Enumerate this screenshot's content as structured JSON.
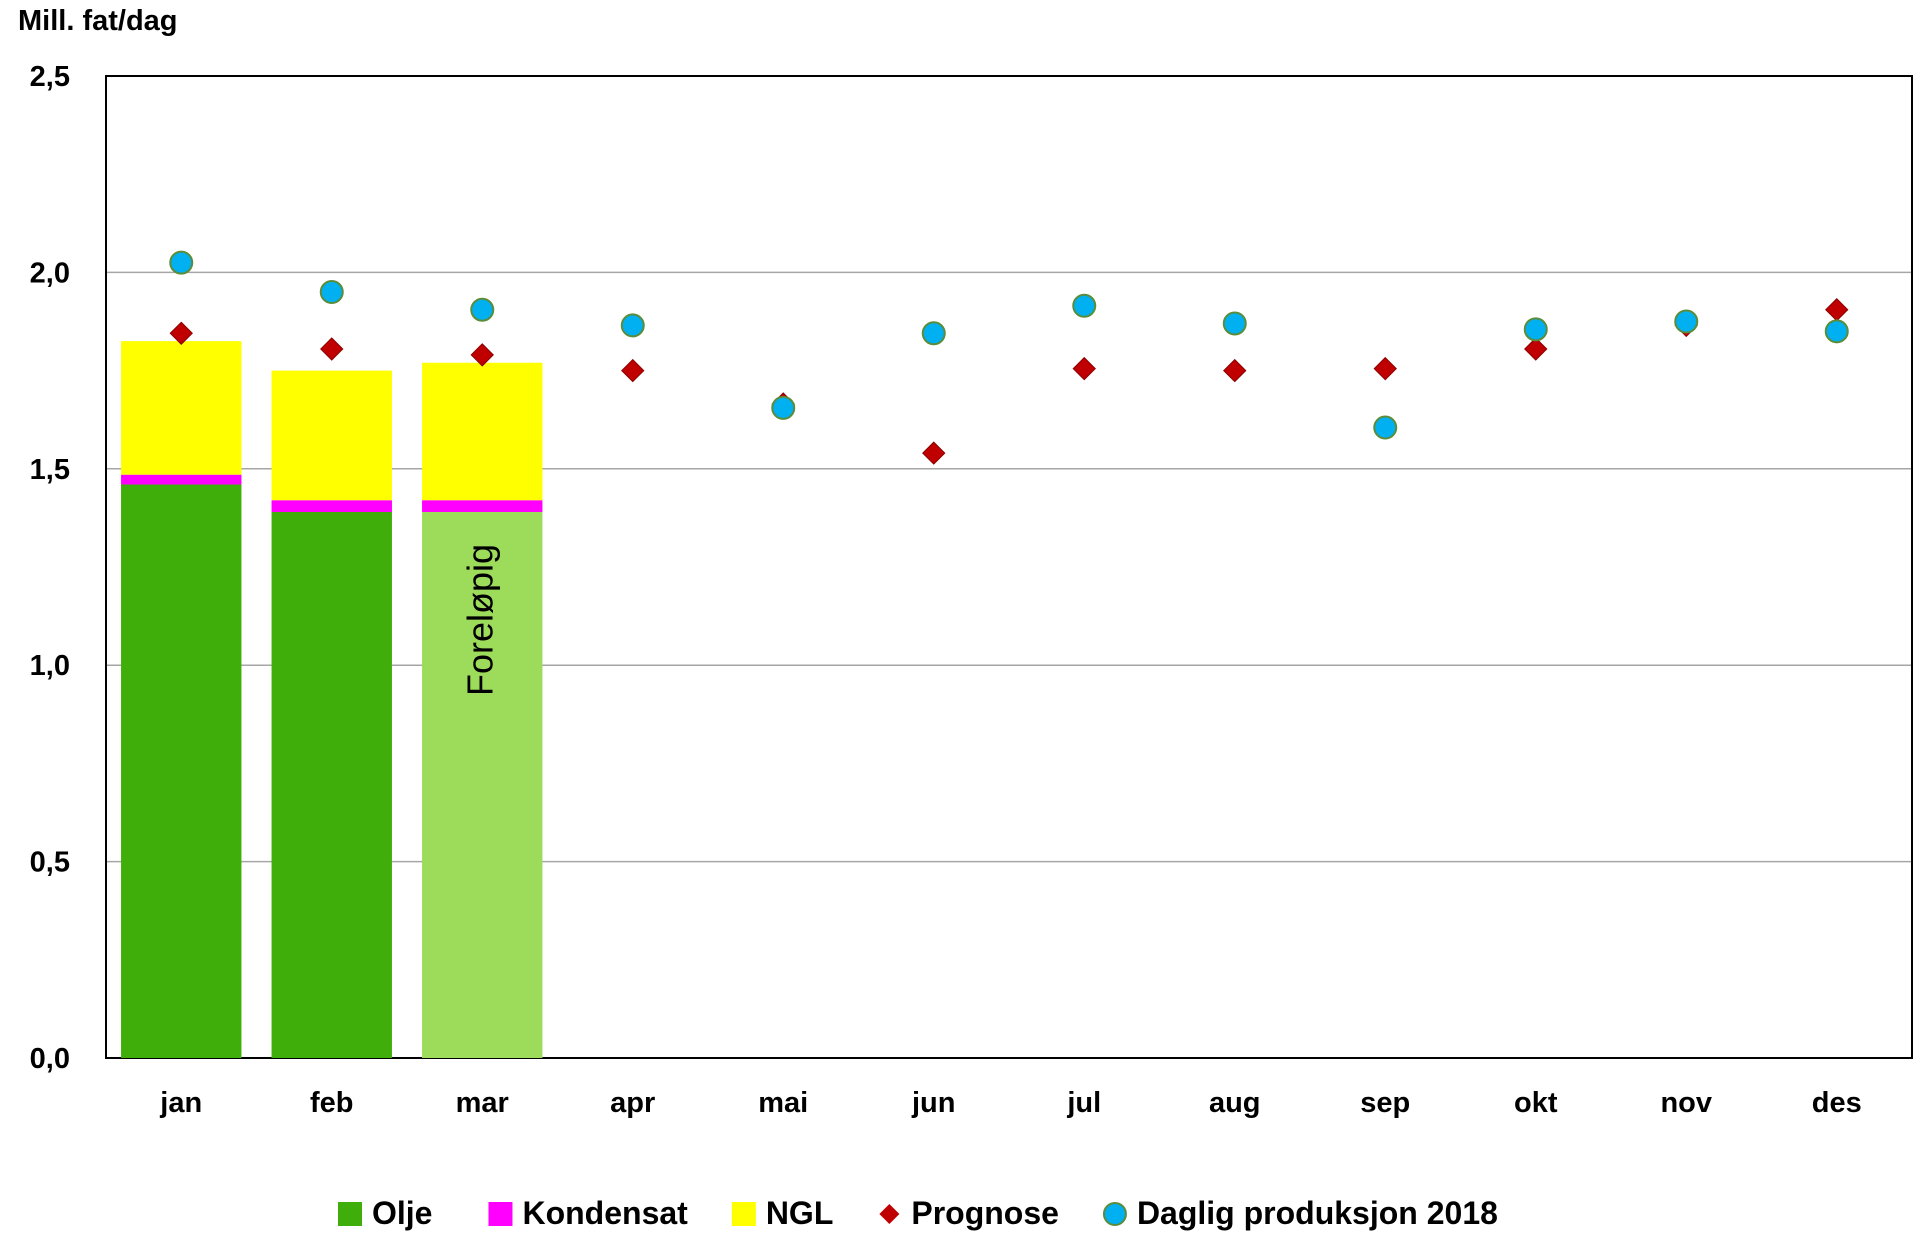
{
  "chart_data": {
    "type": "bar",
    "ylabel": "Mill. fat/dag",
    "ylim": [
      0,
      2.5
    ],
    "yticks": [
      "0,0",
      "0,5",
      "1,0",
      "1,5",
      "2,0",
      "2,5"
    ],
    "ytick_values": [
      0,
      0.5,
      1.0,
      1.5,
      2.0,
      2.5
    ],
    "grid": true,
    "legend_position": "bottom",
    "categories": [
      "jan",
      "feb",
      "mar",
      "apr",
      "mai",
      "jun",
      "jul",
      "aug",
      "sep",
      "okt",
      "nov",
      "des"
    ],
    "bar_series": [
      {
        "name": "Olje",
        "color": "#3fae0a",
        "values": [
          1.46,
          1.39,
          1.39,
          null,
          null,
          null,
          null,
          null,
          null,
          null,
          null,
          null
        ]
      },
      {
        "name": "Kondensat",
        "color": "#ff00ff",
        "values": [
          0.025,
          0.03,
          0.03,
          null,
          null,
          null,
          null,
          null,
          null,
          null,
          null,
          null
        ]
      },
      {
        "name": "NGL",
        "color": "#ffff00",
        "values": [
          0.34,
          0.33,
          0.35,
          null,
          null,
          null,
          null,
          null,
          null,
          null,
          null,
          null
        ]
      }
    ],
    "preliminary": {
      "category": "mar",
      "label": "Foreløpig",
      "oil_color": "#9ddc5a"
    },
    "point_series": [
      {
        "name": "Prognose",
        "marker": "diamond",
        "color": "#c00000",
        "values": [
          1.845,
          1.805,
          1.79,
          1.75,
          1.665,
          1.54,
          1.755,
          1.75,
          1.755,
          1.805,
          1.865,
          1.905
        ]
      },
      {
        "name": "Daglig produksjon 2018",
        "marker": "circle",
        "color": "#00b0f0",
        "values": [
          2.025,
          1.95,
          1.905,
          1.865,
          1.655,
          1.845,
          1.915,
          1.87,
          1.605,
          1.855,
          1.875,
          1.85
        ]
      }
    ]
  }
}
